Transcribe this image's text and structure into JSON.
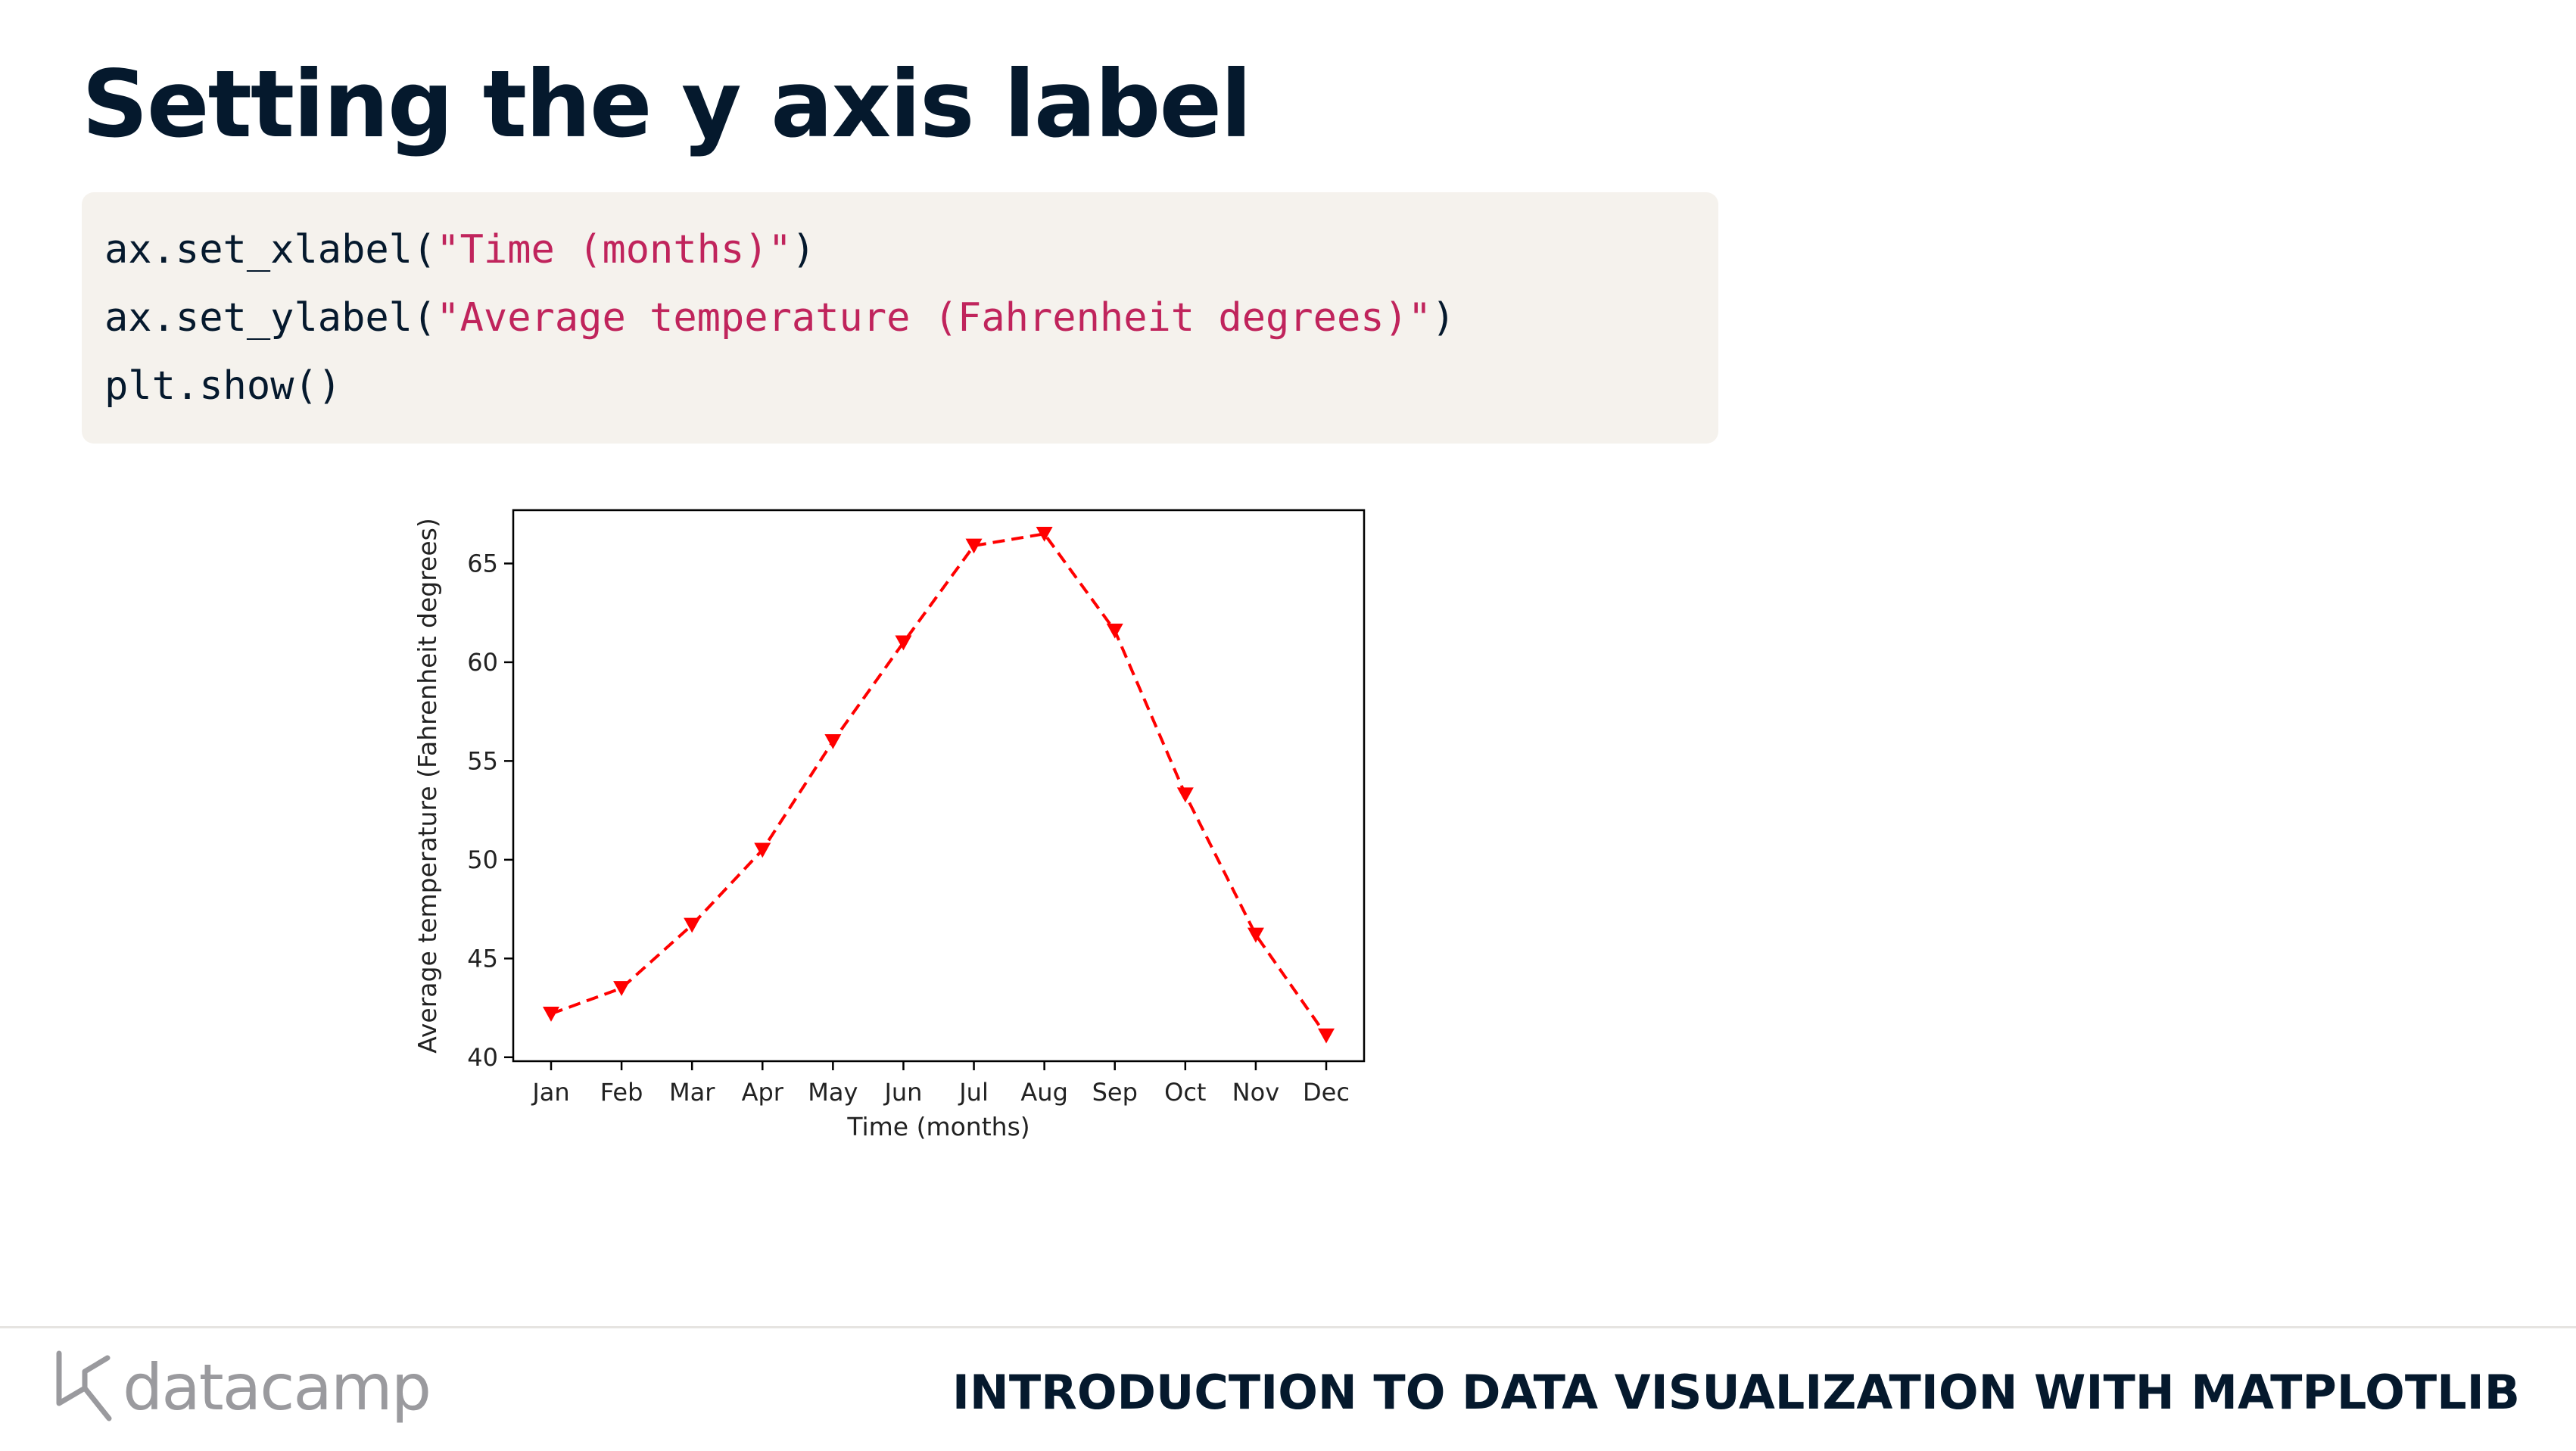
{
  "slide": {
    "title": "Setting the y axis label",
    "course_title": "INTRODUCTION TO DATA VISUALIZATION WITH MATPLOTLIB",
    "brand": "datacamp"
  },
  "code": {
    "line1_pre": "ax.set_xlabel(",
    "line1_str": "\"Time (months)\"",
    "line1_post": ")",
    "line2_pre": "ax.set_ylabel(",
    "line2_str": "\"Average temperature (Fahrenheit degrees)\"",
    "line2_post": ")",
    "line3": "plt.show()"
  },
  "colors": {
    "title": "#05192d",
    "code_string": "#c0245c",
    "code_bg": "#f5f2ed",
    "series": "#ff0000"
  },
  "icons": {
    "logo": "datacamp-logo-icon"
  },
  "chart_data": {
    "type": "line",
    "categories": [
      "Jan",
      "Feb",
      "Mar",
      "Apr",
      "May",
      "Jun",
      "Jul",
      "Aug",
      "Sep",
      "Oct",
      "Nov",
      "Dec"
    ],
    "values": [
      42.2,
      43.5,
      46.7,
      50.5,
      56.0,
      61.0,
      65.9,
      66.5,
      61.6,
      53.3,
      46.2,
      41.1
    ],
    "xlabel": "Time (months)",
    "ylabel": "Average temperature (Fahrenheit degrees)",
    "ylim": [
      39.8,
      67.7
    ],
    "yticks": [
      40,
      45,
      50,
      55,
      60,
      65
    ],
    "line_style": "dashed",
    "marker": "triangle-down",
    "grid": false
  }
}
